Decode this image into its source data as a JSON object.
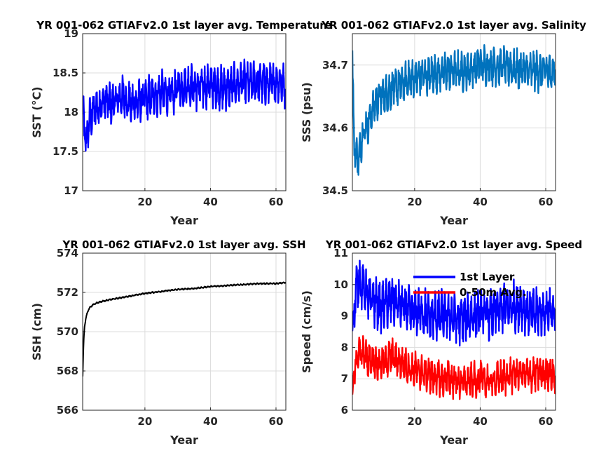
{
  "chart_data": [
    {
      "type": "line",
      "title": "YR 001-062 GTIAFv2.0 1st layer avg. Temperature",
      "xlabel": "Year",
      "ylabel": "SST (°C)",
      "xlim": [
        1,
        63
      ],
      "ylim": [
        17,
        19
      ],
      "xticks": [
        20,
        40,
        60
      ],
      "yticks": [
        17,
        17.5,
        18,
        18.5,
        19
      ],
      "grid": true,
      "series": [
        {
          "color": "#0000ff",
          "x": [
            1,
            2,
            3,
            5,
            8,
            10,
            13,
            16,
            19,
            22,
            25,
            28,
            30,
            33,
            36,
            40,
            44,
            48,
            50,
            52,
            55,
            58,
            61,
            63
          ],
          "y": [
            18.0,
            17.6,
            17.9,
            18.05,
            18.15,
            18.1,
            18.2,
            18.1,
            18.15,
            18.2,
            18.25,
            18.2,
            18.3,
            18.35,
            18.3,
            18.35,
            18.3,
            18.35,
            18.4,
            18.35,
            18.4,
            18.35,
            18.4,
            18.3
          ]
        }
      ]
    },
    {
      "type": "line",
      "title": "YR 001-062 GTIAFv2.0 1st layer avg. Salinity",
      "xlabel": "Year",
      "ylabel": "SSS (psu)",
      "xlim": [
        1,
        63
      ],
      "ylim": [
        34.5,
        34.75
      ],
      "xticks": [
        20,
        40,
        60
      ],
      "yticks": [
        34.5,
        34.6,
        34.7
      ],
      "yticklabels": [
        "34.5",
        "34.6",
        "34.7"
      ],
      "grid": true,
      "series": [
        {
          "color": "#0072bd",
          "x": [
            1,
            1.5,
            2,
            3,
            4,
            6,
            8,
            10,
            13,
            16,
            20,
            25,
            30,
            35,
            40,
            45,
            50,
            55,
            60,
            63
          ],
          "y": [
            34.71,
            34.58,
            34.56,
            34.55,
            34.59,
            34.61,
            34.64,
            34.65,
            34.66,
            34.67,
            34.68,
            34.685,
            34.69,
            34.69,
            34.7,
            34.7,
            34.695,
            34.69,
            34.69,
            34.69
          ]
        }
      ]
    },
    {
      "type": "line",
      "title": "YR 001-062 GTIAFv2.0 1st layer avg. SSH",
      "xlabel": "Year",
      "ylabel": "SSH (cm)",
      "xlim": [
        1,
        63
      ],
      "ylim": [
        566,
        574
      ],
      "xticks": [
        20,
        40,
        60
      ],
      "yticks": [
        566,
        568,
        570,
        572,
        574
      ],
      "grid": true,
      "series": [
        {
          "color": "#000000",
          "x": [
            1,
            1.3,
            1.6,
            2,
            2.5,
            3,
            4,
            5,
            7,
            10,
            15,
            20,
            25,
            30,
            35,
            40,
            45,
            50,
            55,
            60,
            63
          ],
          "y": [
            567.7,
            569.5,
            570.3,
            570.7,
            571.0,
            571.2,
            571.35,
            571.45,
            571.55,
            571.65,
            571.8,
            571.95,
            572.05,
            572.15,
            572.2,
            572.3,
            572.35,
            572.4,
            572.45,
            572.45,
            572.5
          ]
        }
      ]
    },
    {
      "type": "line",
      "title": "YR 001-062 GTIAFv2.0 1st layer avg. Speed",
      "xlabel": "Year",
      "ylabel": "Speed (cm/s)",
      "xlim": [
        1,
        63
      ],
      "ylim": [
        6,
        11
      ],
      "xticks": [
        20,
        40,
        60
      ],
      "yticks": [
        6,
        7,
        8,
        9,
        10,
        11
      ],
      "grid": true,
      "legend": "top-right",
      "series": [
        {
          "name": "1st Layer",
          "color": "#0000ff",
          "x": [
            1,
            2,
            3,
            5,
            8,
            10,
            13,
            16,
            19,
            22,
            25,
            28,
            31,
            34,
            37,
            40,
            43,
            46,
            49,
            52,
            55,
            58,
            61,
            63
          ],
          "y": [
            8.5,
            9.8,
            10.2,
            9.7,
            9.4,
            9.3,
            9.5,
            9.3,
            9.1,
            9.1,
            9.0,
            9.0,
            9.0,
            8.9,
            9.0,
            9.1,
            9.0,
            9.2,
            9.3,
            9.3,
            9.1,
            9.1,
            9.2,
            9.0
          ]
        },
        {
          "name": "0-50m Avg.",
          "color": "#ff0000",
          "x": [
            1,
            2,
            3,
            5,
            8,
            10,
            13,
            16,
            19,
            22,
            25,
            28,
            31,
            34,
            37,
            40,
            43,
            46,
            49,
            52,
            55,
            58,
            61,
            63
          ],
          "y": [
            6.3,
            7.6,
            7.9,
            7.7,
            7.5,
            7.5,
            7.7,
            7.5,
            7.3,
            7.2,
            7.1,
            7.0,
            7.0,
            6.9,
            6.9,
            7.0,
            6.9,
            7.0,
            7.1,
            7.2,
            7.1,
            7.2,
            7.2,
            7.1
          ]
        }
      ]
    }
  ]
}
